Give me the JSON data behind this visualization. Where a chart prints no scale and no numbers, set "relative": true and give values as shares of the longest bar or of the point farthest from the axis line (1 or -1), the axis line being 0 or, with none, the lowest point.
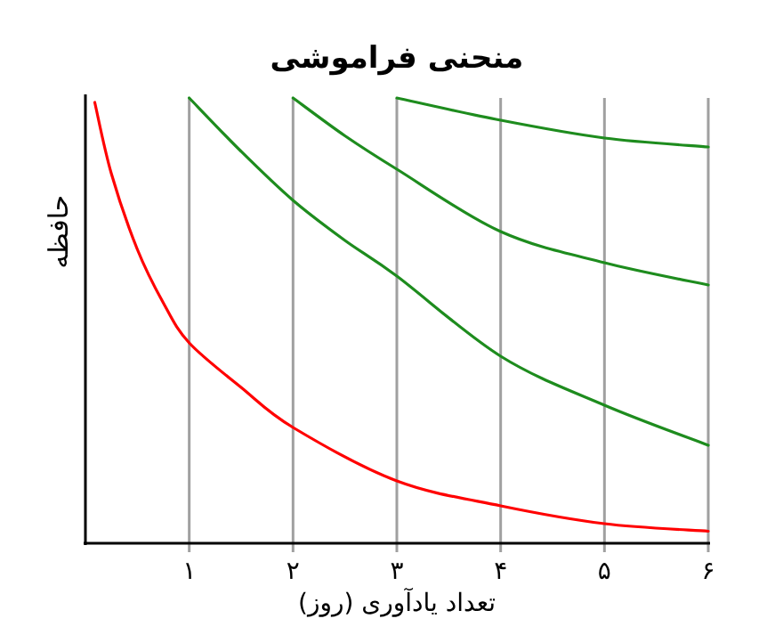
{
  "chart_data": {
    "type": "line",
    "title": "منحنی فراموشی",
    "xlabel": "تعداد یادآوری (روز)",
    "ylabel": "حافظه",
    "relative": true,
    "xlim": [
      0,
      6
    ],
    "xticks": [
      {
        "value": 1,
        "label": "۱"
      },
      {
        "value": 2,
        "label": "۲"
      },
      {
        "value": 3,
        "label": "۳"
      },
      {
        "value": 4,
        "label": "۴"
      },
      {
        "value": 5,
        "label": "۵"
      },
      {
        "value": 6,
        "label": "۶"
      }
    ],
    "grid": "x",
    "tick_labels": "x",
    "marker": "none",
    "line_style": "solid",
    "series": [
      {
        "color": "#ff0000",
        "x": [
          0.09,
          0.25,
          0.5,
          0.75,
          1,
          1.5,
          2,
          3,
          4,
          5,
          6
        ],
        "values": [
          0.99,
          0.83,
          0.66,
          0.54,
          0.45,
          0.35,
          0.26,
          0.14,
          0.084,
          0.044,
          0.027
        ]
      },
      {
        "color": "#1e8c1e",
        "x": [
          1,
          1.5,
          2,
          2.5,
          3,
          4,
          5,
          6
        ],
        "values": [
          1,
          0.88,
          0.77,
          0.68,
          0.6,
          0.42,
          0.31,
          0.22
        ]
      },
      {
        "color": "#1e8c1e",
        "x": [
          2,
          2.5,
          3,
          4,
          5,
          6
        ],
        "values": [
          1,
          0.915,
          0.84,
          0.7,
          0.63,
          0.58
        ]
      },
      {
        "color": "#1e8c1e",
        "x": [
          3,
          4,
          5,
          6
        ],
        "values": [
          1,
          0.95,
          0.91,
          0.89
        ]
      }
    ]
  }
}
